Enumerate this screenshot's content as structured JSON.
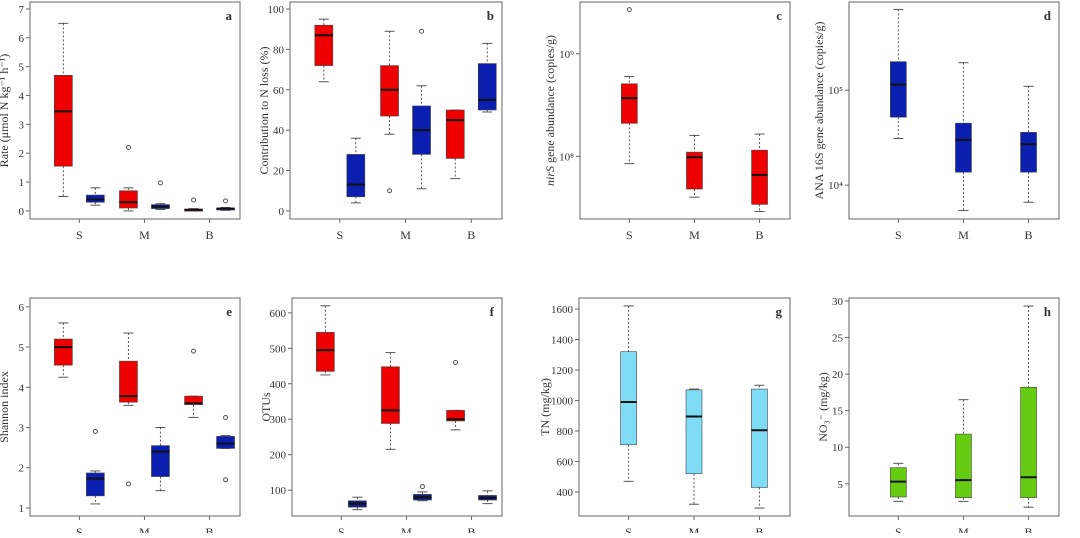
{
  "chart_data": [
    {
      "panel": "a",
      "type": "boxplot",
      "ylabel": "Rate (μmol N kg⁻¹ h⁻¹)",
      "scale": "linear",
      "ylim": [
        -0.28,
        7.24
      ],
      "yticks": [
        0,
        1,
        2,
        3,
        4,
        5,
        6,
        7
      ],
      "ytick_labels": [
        "0",
        "1",
        "2",
        "3",
        "4",
        "5",
        "6",
        "7"
      ],
      "categories": [
        "S",
        "M",
        "B"
      ],
      "series": [
        {
          "color": "#ee0000",
          "boxes": [
            {
              "min": 0.5,
              "q1": 1.55,
              "median": 3.45,
              "q3": 4.7,
              "max": 6.5,
              "outliers": []
            },
            {
              "min": 0.0,
              "q1": 0.1,
              "median": 0.3,
              "q3": 0.7,
              "max": 0.8,
              "outliers": [
                2.2
              ]
            },
            {
              "min": 0.01,
              "q1": 0.02,
              "median": 0.04,
              "q3": 0.06,
              "max": 0.08,
              "outliers": [
                0.38
              ]
            }
          ]
        },
        {
          "color": "#0a1fb0",
          "boxes": [
            {
              "min": 0.2,
              "q1": 0.3,
              "median": 0.4,
              "q3": 0.55,
              "max": 0.8,
              "outliers": []
            },
            {
              "min": 0.05,
              "q1": 0.08,
              "median": 0.15,
              "q3": 0.22,
              "max": 0.25,
              "outliers": [
                0.97
              ]
            },
            {
              "min": 0.02,
              "q1": 0.05,
              "median": 0.08,
              "q3": 0.1,
              "max": 0.12,
              "outliers": [
                0.35
              ]
            }
          ]
        }
      ]
    },
    {
      "panel": "b",
      "type": "boxplot",
      "ylabel": "Contribution to N loss (%)",
      "scale": "linear",
      "ylim": [
        -4,
        103.5
      ],
      "yticks": [
        0,
        20,
        40,
        60,
        80,
        100
      ],
      "ytick_labels": [
        "0",
        "20",
        "40",
        "60",
        "80",
        "100"
      ],
      "categories": [
        "S",
        "M",
        "B"
      ],
      "series": [
        {
          "color": "#ee0000",
          "boxes": [
            {
              "min": 64,
              "q1": 72,
              "median": 87,
              "q3": 92,
              "max": 95,
              "outliers": []
            },
            {
              "min": 38,
              "q1": 47,
              "median": 60,
              "q3": 72,
              "max": 89,
              "outliers": [
                10
              ]
            },
            {
              "min": 16,
              "q1": 26,
              "median": 45,
              "q3": 50,
              "max": 50,
              "outliers": []
            }
          ]
        },
        {
          "color": "#0a1fb0",
          "boxes": [
            {
              "min": 4,
              "q1": 7,
              "median": 13,
              "q3": 28,
              "max": 36,
              "outliers": []
            },
            {
              "min": 11,
              "q1": 28,
              "median": 40,
              "q3": 52,
              "max": 62,
              "outliers": [
                89
              ]
            },
            {
              "min": 49,
              "q1": 50,
              "median": 55,
              "q3": 73,
              "max": 83,
              "outliers": []
            }
          ]
        }
      ]
    },
    {
      "panel": "c",
      "type": "boxplot",
      "ylabel_italic": "nirS",
      "ylabel": " gene abundance (copies/g)",
      "scale": "log",
      "ylim": [
        24500000,
        3200000000
      ],
      "yticks": [
        100000000,
        1000000000
      ],
      "ytick_labels": [
        "10⁸",
        "10⁹"
      ],
      "categories": [
        "S",
        "M",
        "B"
      ],
      "series": [
        {
          "color": "#ee0000",
          "boxes": [
            {
              "min": 85000000,
              "q1": 210000000,
              "median": 370000000,
              "q3": 510000000,
              "max": 600000000,
              "outliers": [
                2700000000
              ]
            },
            {
              "min": 40000000,
              "q1": 48000000,
              "median": 98000000,
              "q3": 110000000,
              "max": 160000000,
              "outliers": []
            },
            {
              "min": 29000000,
              "q1": 34000000,
              "median": 66000000,
              "q3": 115000000,
              "max": 165000000,
              "outliers": []
            }
          ]
        }
      ]
    },
    {
      "panel": "d",
      "type": "boxplot",
      "ylabel": "ANA 16S gene abundance (copies/g)",
      "scale": "log",
      "ylim": [
        4400,
        850000
      ],
      "yticks": [
        10000,
        100000
      ],
      "ytick_labels": [
        "10⁴",
        "10⁵"
      ],
      "categories": [
        "S",
        "M",
        "B"
      ],
      "series": [
        {
          "color": "#0a1fb0",
          "boxes": [
            {
              "min": 31000,
              "q1": 52000,
              "median": 115000,
              "q3": 200000,
              "max": 710000,
              "outliers": []
            },
            {
              "min": 5400,
              "q1": 13700,
              "median": 30000,
              "q3": 45000,
              "max": 195000,
              "outliers": []
            },
            {
              "min": 6600,
              "q1": 13700,
              "median": 27000,
              "q3": 36000,
              "max": 110000,
              "outliers": []
            }
          ]
        }
      ]
    },
    {
      "panel": "e",
      "type": "boxplot",
      "ylabel": "Shannon index",
      "scale": "linear",
      "ylim": [
        0.8,
        6.22
      ],
      "yticks": [
        1,
        2,
        3,
        4,
        5,
        6
      ],
      "ytick_labels": [
        "1",
        "2",
        "3",
        "4",
        "5",
        "6"
      ],
      "categories": [
        "S",
        "M",
        "B"
      ],
      "series": [
        {
          "color": "#ee0000",
          "boxes": [
            {
              "min": 4.25,
              "q1": 4.55,
              "median": 5.0,
              "q3": 5.2,
              "max": 5.6,
              "outliers": []
            },
            {
              "min": 3.55,
              "q1": 3.63,
              "median": 3.78,
              "q3": 4.65,
              "max": 5.35,
              "outliers": [
                1.6
              ]
            },
            {
              "min": 3.25,
              "q1": 3.57,
              "median": 3.6,
              "q3": 3.78,
              "max": 3.78,
              "outliers": [
                4.9
              ]
            }
          ]
        },
        {
          "color": "#0a1fb0",
          "boxes": [
            {
              "min": 1.1,
              "q1": 1.3,
              "median": 1.73,
              "q3": 1.87,
              "max": 1.92,
              "outliers": [
                2.9
              ]
            },
            {
              "min": 1.43,
              "q1": 1.78,
              "median": 2.4,
              "q3": 2.55,
              "max": 3.0,
              "outliers": []
            },
            {
              "min": 2.48,
              "q1": 2.48,
              "median": 2.6,
              "q3": 2.78,
              "max": 2.8,
              "outliers": [
                3.25,
                1.7
              ]
            }
          ]
        }
      ]
    },
    {
      "panel": "f",
      "type": "boxplot",
      "ylabel": "OTUs",
      "scale": "linear",
      "ylim": [
        27,
        642
      ],
      "yticks": [
        100,
        200,
        300,
        400,
        500,
        600
      ],
      "ytick_labels": [
        "100",
        "200",
        "300",
        "400",
        "500",
        "600"
      ],
      "categories": [
        "S",
        "M",
        "B"
      ],
      "series": [
        {
          "color": "#ee0000",
          "boxes": [
            {
              "min": 425,
              "q1": 435,
              "median": 495,
              "q3": 545,
              "max": 620,
              "outliers": []
            },
            {
              "min": 215,
              "q1": 288,
              "median": 325,
              "q3": 448,
              "max": 488,
              "outliers": []
            },
            {
              "min": 270,
              "q1": 295,
              "median": 300,
              "q3": 325,
              "max": 325,
              "outliers": [
                460
              ]
            }
          ]
        },
        {
          "color": "#10208a",
          "boxes": [
            {
              "min": 45,
              "q1": 52,
              "median": 62,
              "q3": 70,
              "max": 80,
              "outliers": []
            },
            {
              "min": 70,
              "q1": 72,
              "median": 80,
              "q3": 88,
              "max": 95,
              "outliers": [
                110
              ]
            },
            {
              "min": 62,
              "q1": 72,
              "median": 78,
              "q3": 85,
              "max": 98,
              "outliers": []
            }
          ]
        }
      ]
    },
    {
      "panel": "g",
      "type": "boxplot",
      "ylabel": "TN (mg/kg)",
      "scale": "linear",
      "ylim": [
        243,
        1672
      ],
      "yticks": [
        400,
        600,
        800,
        1000,
        1200,
        1400,
        1600
      ],
      "ytick_labels": [
        "400",
        "600",
        "800",
        "1000",
        "1200",
        "1400",
        "1600"
      ],
      "categories": [
        "S",
        "M",
        "B"
      ],
      "series": [
        {
          "color": "#7fdcf5",
          "boxes": [
            {
              "min": 470,
              "q1": 710,
              "median": 990,
              "q3": 1320,
              "max": 1620,
              "outliers": []
            },
            {
              "min": 320,
              "q1": 520,
              "median": 895,
              "q3": 1070,
              "max": 1075,
              "outliers": []
            },
            {
              "min": 295,
              "q1": 430,
              "median": 805,
              "q3": 1075,
              "max": 1100,
              "outliers": []
            }
          ]
        }
      ]
    },
    {
      "panel": "h",
      "type": "boxplot",
      "ylabel": "NO₃⁻ (mg/kg)",
      "scale": "linear",
      "ylim": [
        0.6,
        30.4
      ],
      "yticks": [
        5,
        10,
        15,
        20,
        25,
        30
      ],
      "ytick_labels": [
        "5",
        "10",
        "15",
        "20",
        "25",
        "30"
      ],
      "categories": [
        "S",
        "M",
        "B"
      ],
      "series": [
        {
          "color": "#66cc11",
          "boxes": [
            {
              "min": 2.6,
              "q1": 3.2,
              "median": 5.3,
              "q3": 7.2,
              "max": 7.8,
              "outliers": []
            },
            {
              "min": 2.6,
              "q1": 3.1,
              "median": 5.5,
              "q3": 11.8,
              "max": 16.5,
              "outliers": []
            },
            {
              "min": 1.8,
              "q1": 3.1,
              "median": 5.9,
              "q3": 18.2,
              "max": 29.3,
              "outliers": []
            }
          ]
        }
      ]
    }
  ]
}
